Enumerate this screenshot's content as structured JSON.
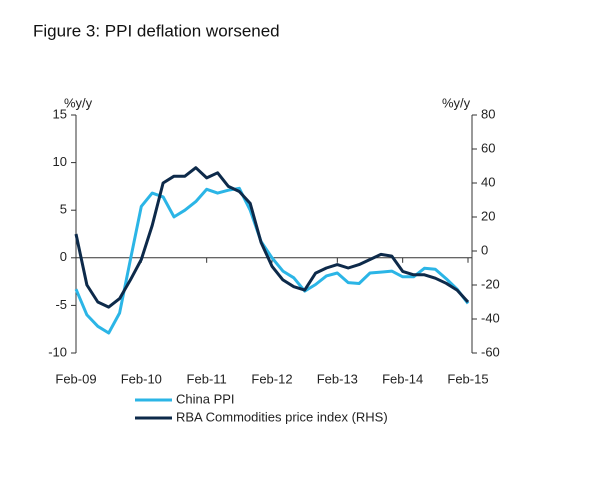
{
  "chart_data": {
    "type": "line",
    "title": "Figure 3: PPI deflation worsened",
    "y_label": "%y/y",
    "y2_label": "%y/y",
    "x": [
      "Feb-09",
      "Apr-09",
      "Jun-09",
      "Aug-09",
      "Oct-09",
      "Dec-09",
      "Feb-10",
      "Apr-10",
      "Jun-10",
      "Aug-10",
      "Oct-10",
      "Dec-10",
      "Feb-11",
      "Apr-11",
      "Jun-11",
      "Aug-11",
      "Oct-11",
      "Dec-11",
      "Feb-12",
      "Apr-12",
      "Jun-12",
      "Aug-12",
      "Oct-12",
      "Dec-12",
      "Feb-13",
      "Apr-13",
      "Jun-13",
      "Aug-13",
      "Oct-13",
      "Dec-13",
      "Feb-14",
      "Apr-14",
      "Jun-14",
      "Aug-14",
      "Oct-14",
      "Dec-14",
      "Feb-15"
    ],
    "xticks": [
      "Feb-09",
      "Feb-10",
      "Feb-11",
      "Feb-12",
      "Feb-13",
      "Feb-14",
      "Feb-15"
    ],
    "ylim": [
      -10,
      15
    ],
    "yticks": [
      -10,
      -5,
      0,
      5,
      10,
      15
    ],
    "y2lim": [
      -60,
      80
    ],
    "y2ticks": [
      -60,
      -40,
      -20,
      0,
      20,
      40,
      60,
      80
    ],
    "series": [
      {
        "name": "China PPI",
        "color": "#2bb5e6",
        "values": [
          -3.3,
          -6.0,
          -7.2,
          -7.9,
          -5.8,
          -0.2,
          5.4,
          6.8,
          6.4,
          4.3,
          5.0,
          5.9,
          7.2,
          6.8,
          7.1,
          7.3,
          5.0,
          1.7,
          0.0,
          -1.4,
          -2.1,
          -3.5,
          -2.8,
          -1.9,
          -1.6,
          -2.6,
          -2.7,
          -1.6,
          -1.5,
          -1.4,
          -2.0,
          -2.0,
          -1.1,
          -1.2,
          -2.2,
          -3.3,
          -4.8
        ]
      },
      {
        "name": "RBA Commodities price index (RHS)",
        "color": "#0d2a4a",
        "axis": "y2",
        "values": [
          10,
          -20,
          -30,
          -33,
          -28,
          -17,
          -5,
          15,
          40,
          44,
          44,
          49,
          43,
          46,
          38,
          35,
          28,
          5,
          -9,
          -17,
          -21,
          -23,
          -13,
          -10,
          -8,
          -10,
          -8,
          -5,
          -2,
          -3,
          -12,
          -14,
          -14,
          -16,
          -19,
          -23,
          -30
        ]
      }
    ]
  }
}
